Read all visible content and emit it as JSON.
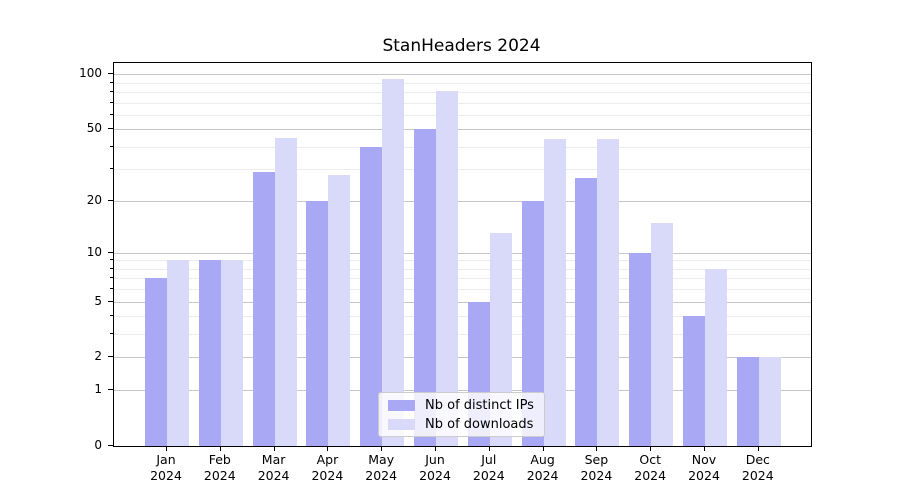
{
  "title": "StanHeaders 2024",
  "colors": {
    "distinct_ips_bar": "#a8a8f4",
    "downloads_bar": "#d9d9fa",
    "grid_major": "#c6c6c6",
    "grid_minor": "#ececec",
    "axis": "#000000",
    "legend_border": "#cccccc",
    "legend_background": "rgba(255,255,255,0.8)"
  },
  "legend": {
    "items": [
      {
        "label": "Nb of distinct IPs",
        "color_key": "distinct_ips_bar"
      },
      {
        "label": "Nb of downloads",
        "color_key": "downloads_bar"
      }
    ]
  },
  "chart_data": {
    "type": "bar",
    "title": "StanHeaders 2024",
    "categories": [
      "Jan",
      "Feb",
      "Mar",
      "Apr",
      "May",
      "Jun",
      "Jul",
      "Aug",
      "Sep",
      "Oct",
      "Nov",
      "Dec"
    ],
    "year_label": "2024",
    "series": [
      {
        "name": "Nb of distinct IPs",
        "values": [
          7,
          9,
          29,
          20,
          40,
          50,
          5,
          20,
          27,
          10,
          4,
          2
        ]
      },
      {
        "name": "Nb of downloads",
        "values": [
          9,
          9,
          45,
          28,
          94,
          81,
          13,
          44,
          44,
          15,
          8,
          2
        ]
      }
    ],
    "xlabel": "",
    "ylabel": "",
    "yscale": "log1p",
    "ylim": [
      0,
      115
    ],
    "y_major_ticks": [
      0,
      1,
      2,
      5,
      10,
      20,
      50,
      100
    ],
    "y_minor_ticks": [
      3,
      4,
      6,
      7,
      8,
      9,
      30,
      40,
      60,
      70,
      80,
      90
    ],
    "grid": "on",
    "legend_position": "lower center"
  }
}
